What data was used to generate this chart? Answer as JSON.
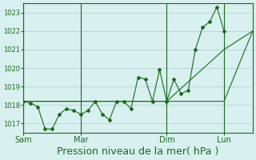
{
  "background_color": "#d8f0f0",
  "grid_color": "#aacccc",
  "line_color": "#1a6b1a",
  "xlabel": "Pression niveau de la mer( hPa )",
  "xlabel_fontsize": 9,
  "yticks": [
    1017,
    1018,
    1019,
    1020,
    1021,
    1022,
    1023
  ],
  "ylim": [
    1016.5,
    1023.5
  ],
  "day_labels": [
    "Sam",
    "Mar",
    "Dim",
    "Lun"
  ],
  "day_positions": [
    0,
    4,
    10,
    14
  ],
  "vline_positions": [
    0,
    4,
    10,
    14
  ],
  "series1_x": [
    0,
    0.5,
    1,
    1.5,
    2,
    2.5,
    3,
    3.5,
    4,
    4.5,
    5,
    5.5,
    6,
    6.5,
    7,
    7.5,
    8,
    8.5,
    9,
    9.5,
    10,
    10.5,
    11,
    11.5,
    12,
    12.5,
    13,
    13.5,
    14
  ],
  "series1_y": [
    1018.2,
    1018.1,
    1017.9,
    1016.7,
    1016.7,
    1017.5,
    1017.8,
    1017.7,
    1017.5,
    1017.7,
    1018.2,
    1017.5,
    1017.2,
    1018.2,
    1018.2,
    1017.8,
    1019.5,
    1019.4,
    1018.2,
    1019.9,
    1018.2,
    1019.4,
    1018.6,
    1018.8,
    1021.0,
    1022.2,
    1022.5,
    1023.3,
    1022.0
  ],
  "series2_x": [
    0,
    4,
    10,
    14,
    16
  ],
  "series2_y": [
    1018.2,
    1018.2,
    1018.2,
    1021.0,
    1022.0
  ],
  "series3_x": [
    0,
    14,
    16
  ],
  "series3_y": [
    1018.2,
    1018.2,
    1022.0
  ],
  "xlim": [
    0,
    16
  ]
}
